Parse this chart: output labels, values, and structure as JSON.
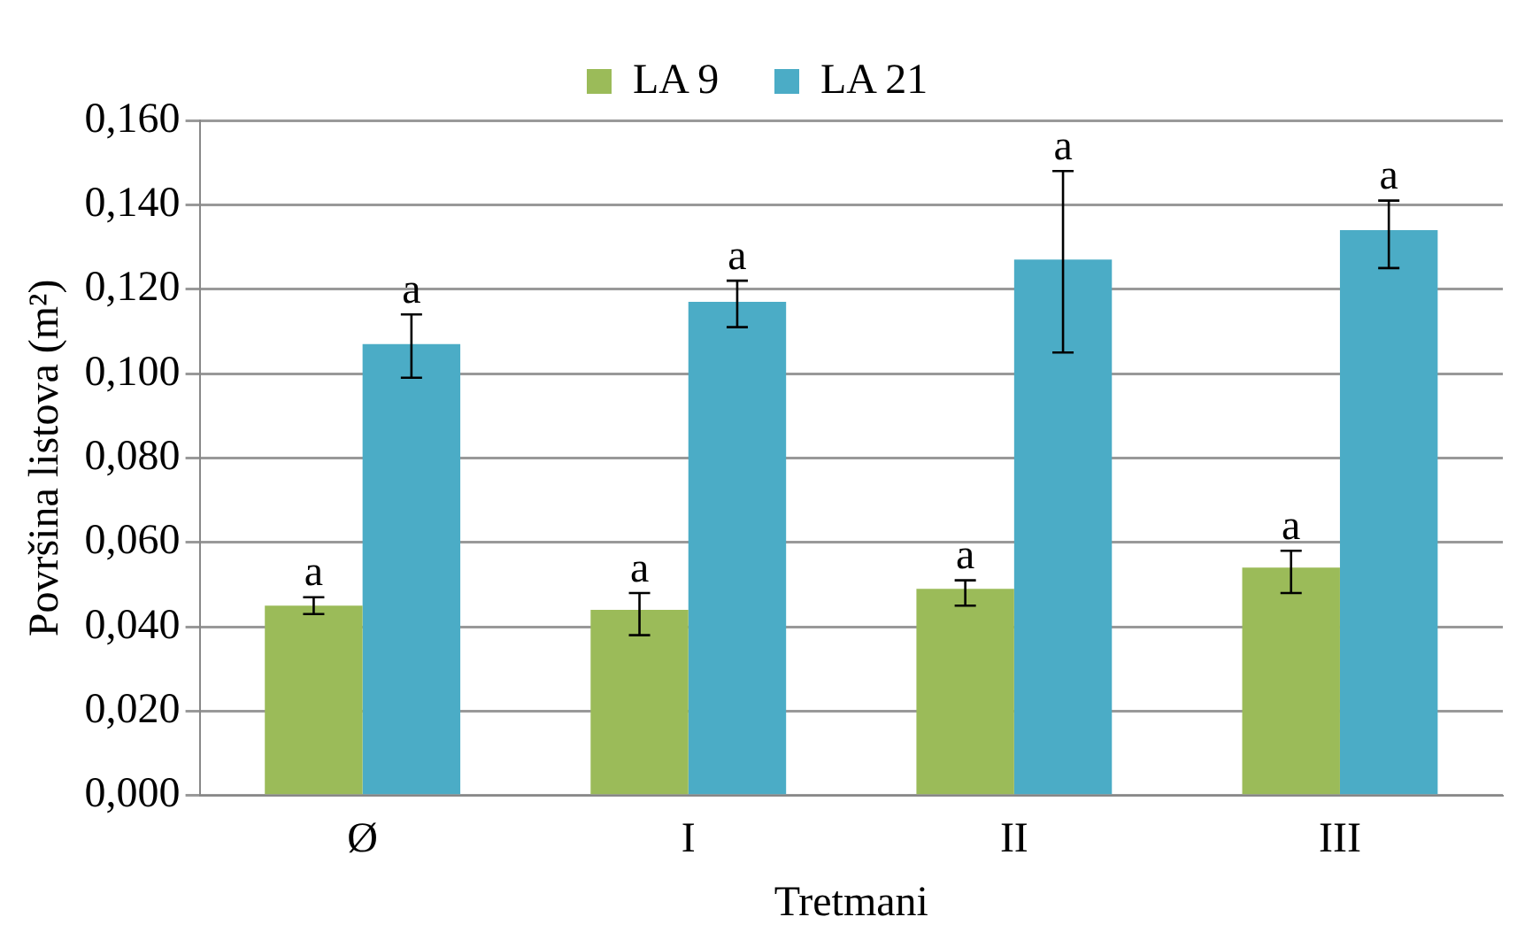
{
  "chart_data": {
    "type": "bar",
    "xlabel": "Tretmani",
    "ylabel": "Površina listova (m²)",
    "categories": [
      "Ø",
      "I",
      "II",
      "III"
    ],
    "series": [
      {
        "name": "LA 9",
        "color": "#9bbb59",
        "values": [
          0.045,
          0.044,
          0.049,
          0.054
        ],
        "errors": [
          [
            0.043,
            0.047
          ],
          [
            0.038,
            0.048
          ],
          [
            0.045,
            0.051
          ],
          [
            0.048,
            0.058
          ]
        ],
        "value_labels": [
          "a",
          "a",
          "a",
          "a"
        ]
      },
      {
        "name": "LA 21",
        "color": "#4bacc6",
        "values": [
          0.107,
          0.117,
          0.127,
          0.134
        ],
        "errors": [
          [
            0.099,
            0.114
          ],
          [
            0.111,
            0.122
          ],
          [
            0.105,
            0.148
          ],
          [
            0.125,
            0.141
          ]
        ],
        "value_labels": [
          "a",
          "a",
          "a",
          "a"
        ]
      }
    ],
    "ylim": [
      0,
      0.16
    ],
    "yticks": [
      {
        "value": 0,
        "label": "0,000"
      },
      {
        "value": 0.02,
        "label": "0,020"
      },
      {
        "value": 0.04,
        "label": "0,040"
      },
      {
        "value": 0.06,
        "label": "0,060"
      },
      {
        "value": 0.08,
        "label": "0,080"
      },
      {
        "value": 0.1,
        "label": "0,100"
      },
      {
        "value": 0.12,
        "label": "0,120"
      },
      {
        "value": 0.14,
        "label": "0,140"
      },
      {
        "value": 0.16,
        "label": "0,160"
      }
    ],
    "grid": "y",
    "legend": "top"
  }
}
